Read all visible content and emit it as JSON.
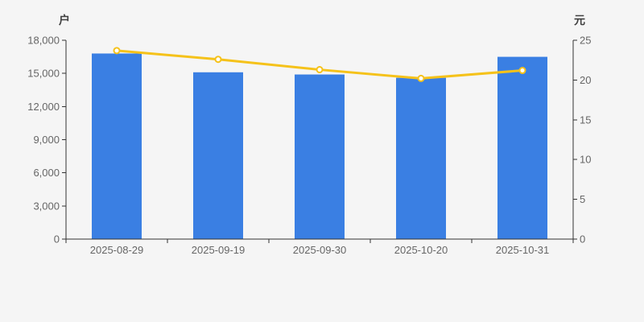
{
  "chart_data": {
    "type": "bar",
    "subtype": "bar-line-combo",
    "categories": [
      "2025-08-29",
      "2025-09-19",
      "2025-09-30",
      "2025-10-20",
      "2025-10-31"
    ],
    "series": [
      {
        "id": "bar-series",
        "type": "bar",
        "y_axis": "left",
        "values": [
          16800,
          15100,
          14900,
          14600,
          16500
        ],
        "color": "#3a7fe3"
      },
      {
        "id": "line-series",
        "type": "line",
        "y_axis": "right",
        "values": [
          23.7,
          22.6,
          21.3,
          20.2,
          21.2
        ],
        "color": "#f5c21a",
        "marker": "hollow-circle",
        "marker_fill": "#ffffff"
      }
    ],
    "left_axis": {
      "name": "户",
      "min": 0,
      "max": 18000,
      "interval": 3000,
      "tick_labels": [
        "0",
        "3,000",
        "6,000",
        "9,000",
        "12,000",
        "15,000",
        "18,000"
      ]
    },
    "right_axis": {
      "name": "元",
      "min": 0,
      "max": 25,
      "interval": 5,
      "tick_labels": [
        "0",
        "5",
        "10",
        "15",
        "20",
        "25"
      ]
    },
    "grid": false,
    "legend": false,
    "title": "",
    "styles": {
      "axis_line_color": "#333333",
      "tick_label_color": "#666666",
      "axis_name_color": "#404040",
      "background": "#f5f5f5"
    }
  }
}
